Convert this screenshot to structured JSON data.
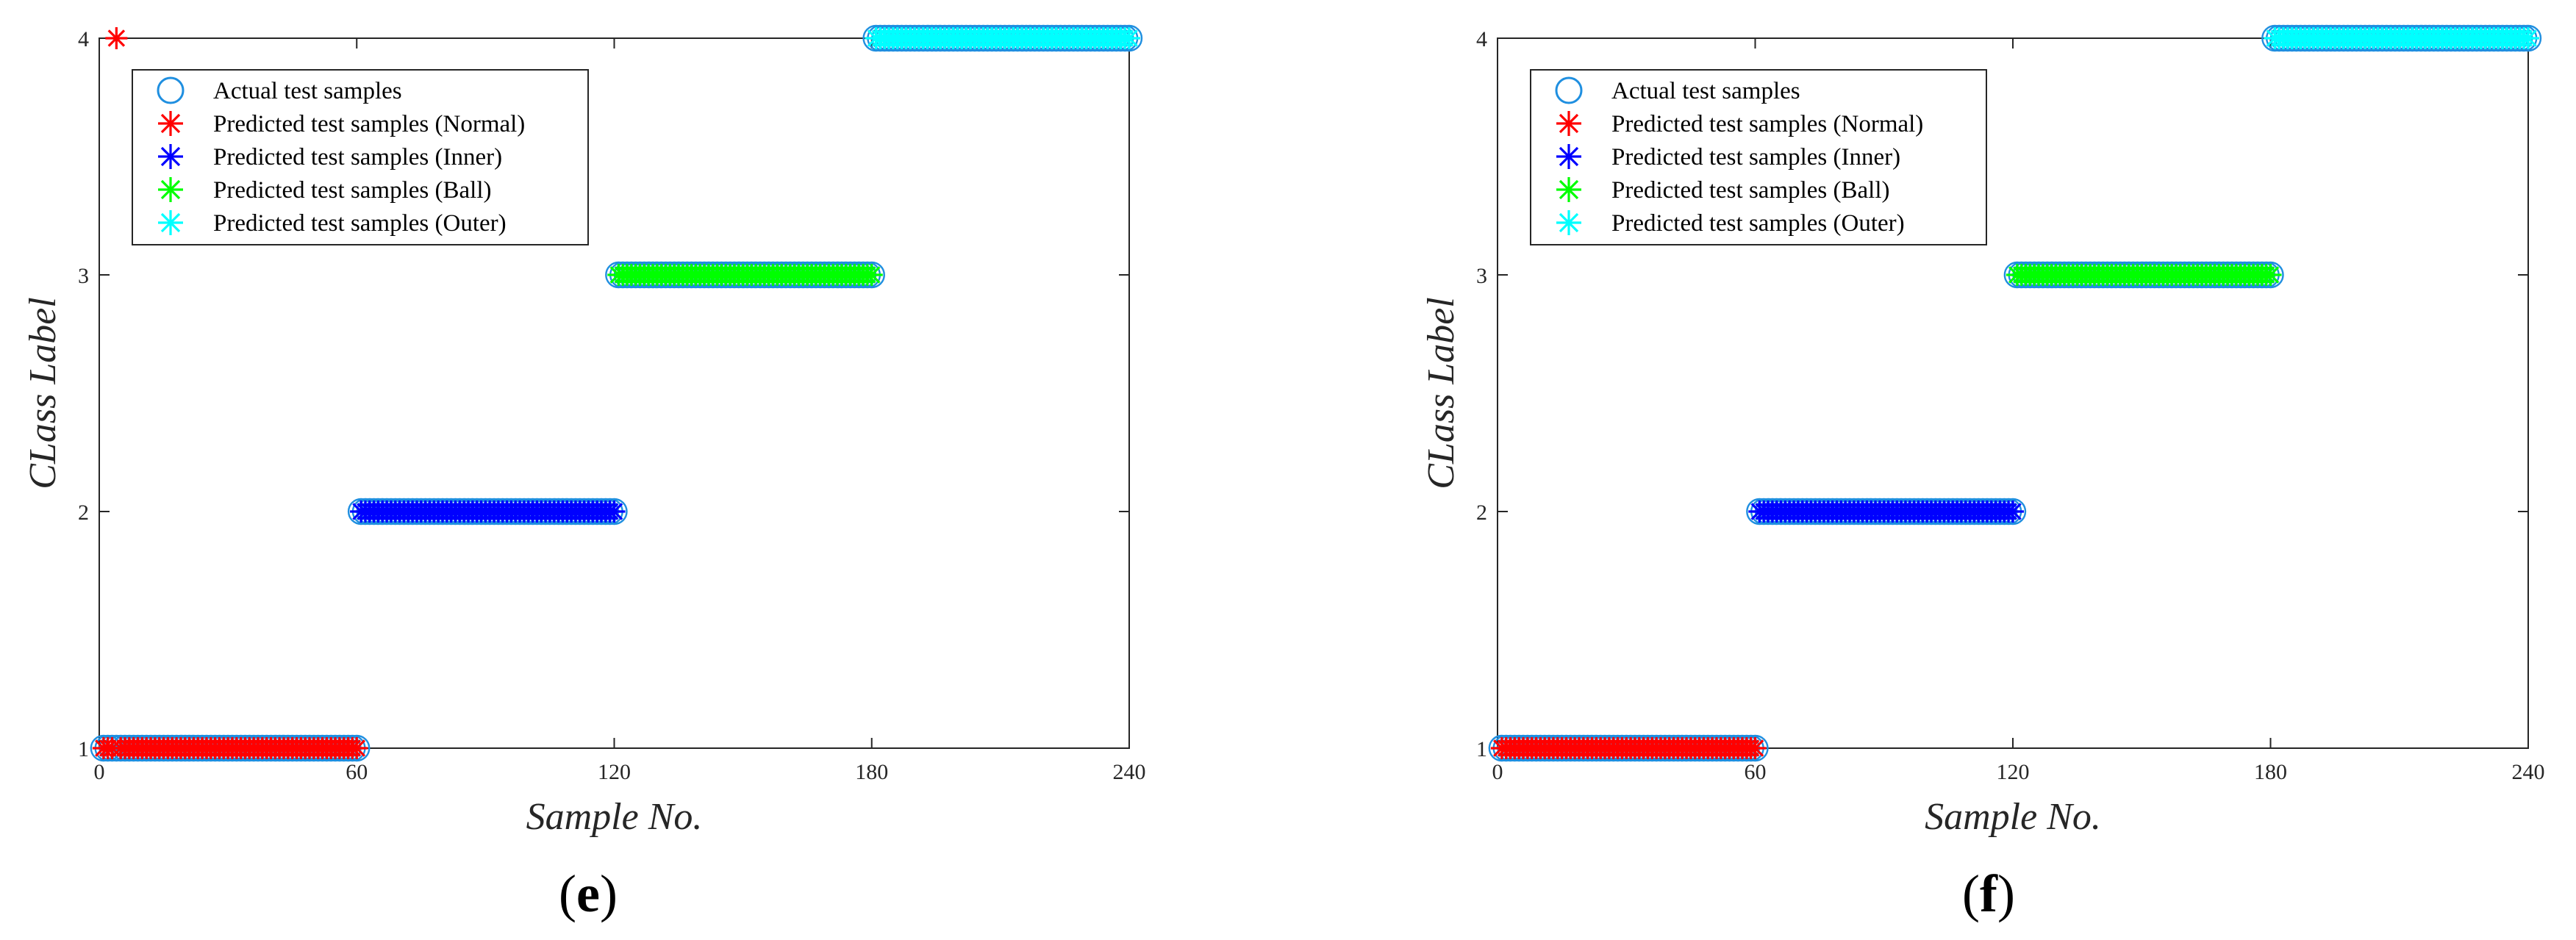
{
  "chart_data": [
    {
      "type": "scatter",
      "panel_label": "e",
      "xlabel": "Sample No.",
      "ylabel": "CLass Label",
      "xlim": [
        0,
        240
      ],
      "ylim": [
        1,
        4
      ],
      "xticks": [
        0,
        60,
        120,
        180,
        240
      ],
      "yticks": [
        1,
        2,
        3,
        4
      ],
      "grid": false,
      "legend_position": "top-left",
      "series": [
        {
          "name": "Actual test samples",
          "marker": "circle",
          "color": "#1f8fe0",
          "x_range": [
            1,
            240
          ],
          "class_ranges": [
            {
              "from": 1,
              "to": 60,
              "y": 1
            },
            {
              "from": 61,
              "to": 120,
              "y": 2
            },
            {
              "from": 121,
              "to": 180,
              "y": 3
            },
            {
              "from": 181,
              "to": 240,
              "y": 4
            }
          ],
          "extra_points": []
        },
        {
          "name": "Predicted test samples (Normal)",
          "marker": "star",
          "color": "#ff0000",
          "class_ranges": [
            {
              "from": 1,
              "to": 60,
              "y": 1
            }
          ],
          "extra_points": [
            {
              "x": 4,
              "y": 4
            }
          ],
          "exclude_x": [
            4
          ]
        },
        {
          "name": "Predicted test samples (Inner)",
          "marker": "star",
          "color": "#0000ff",
          "class_ranges": [
            {
              "from": 61,
              "to": 120,
              "y": 2
            }
          ],
          "extra_points": []
        },
        {
          "name": "Predicted test samples (Ball)",
          "marker": "star",
          "color": "#00ff00",
          "class_ranges": [
            {
              "from": 121,
              "to": 180,
              "y": 3
            }
          ],
          "extra_points": []
        },
        {
          "name": "Predicted test samples (Outer)",
          "marker": "star",
          "color": "#00ffff",
          "class_ranges": [
            {
              "from": 181,
              "to": 240,
              "y": 4
            }
          ],
          "extra_points": []
        }
      ]
    },
    {
      "type": "scatter",
      "panel_label": "f",
      "xlabel": "Sample No.",
      "ylabel": "CLass Label",
      "xlim": [
        0,
        240
      ],
      "ylim": [
        1,
        4
      ],
      "xticks": [
        0,
        60,
        120,
        180,
        240
      ],
      "yticks": [
        1,
        2,
        3,
        4
      ],
      "grid": false,
      "legend_position": "top-left",
      "series": [
        {
          "name": "Actual test samples",
          "marker": "circle",
          "color": "#1f8fe0",
          "class_ranges": [
            {
              "from": 1,
              "to": 60,
              "y": 1
            },
            {
              "from": 61,
              "to": 120,
              "y": 2
            },
            {
              "from": 121,
              "to": 180,
              "y": 3
            },
            {
              "from": 181,
              "to": 240,
              "y": 4
            }
          ],
          "extra_points": []
        },
        {
          "name": "Predicted test samples (Normal)",
          "marker": "star",
          "color": "#ff0000",
          "class_ranges": [
            {
              "from": 1,
              "to": 60,
              "y": 1
            }
          ],
          "extra_points": []
        },
        {
          "name": "Predicted test samples (Inner)",
          "marker": "star",
          "color": "#0000ff",
          "class_ranges": [
            {
              "from": 61,
              "to": 120,
              "y": 2
            }
          ],
          "extra_points": []
        },
        {
          "name": "Predicted test samples (Ball)",
          "marker": "star",
          "color": "#00ff00",
          "class_ranges": [
            {
              "from": 121,
              "to": 180,
              "y": 3
            }
          ],
          "extra_points": []
        },
        {
          "name": "Predicted test samples (Outer)",
          "marker": "star",
          "color": "#00ffff",
          "class_ranges": [
            {
              "from": 181,
              "to": 240,
              "y": 4
            }
          ],
          "extra_points": []
        }
      ]
    }
  ]
}
